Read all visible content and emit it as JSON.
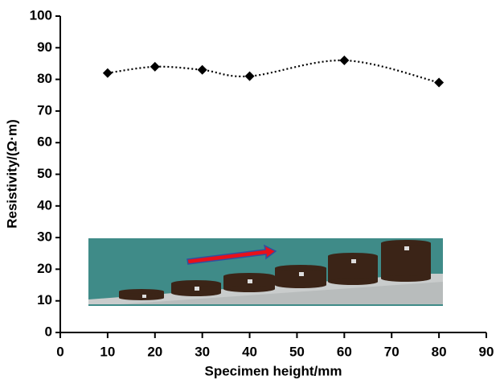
{
  "chart_data": {
    "type": "line",
    "x_label": "Specimen height/mm",
    "y_label": "Resistivity/(Ω·m)",
    "x": [
      10,
      20,
      30,
      40,
      60,
      80
    ],
    "values": [
      82,
      84,
      83,
      81,
      86,
      79
    ],
    "color": "#000000",
    "line_style": "dotted",
    "marker": "diamond",
    "xlim": [
      0,
      90
    ],
    "xticks": [
      0,
      10,
      20,
      30,
      40,
      50,
      60,
      70,
      80,
      90
    ],
    "ylim": [
      0,
      100
    ],
    "yticks": [
      0,
      10,
      20,
      30,
      40,
      50,
      60,
      70,
      80,
      90,
      100
    ]
  }
}
